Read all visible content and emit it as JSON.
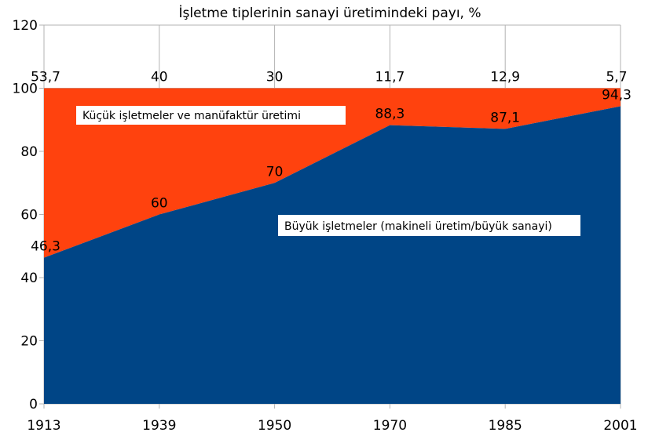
{
  "chart_data": {
    "type": "area",
    "stacked": true,
    "title": "İşletme tiplerinin sanayi üretimindeki payı, %",
    "categories": [
      "1913",
      "1939",
      "1950",
      "1970",
      "1985",
      "2001"
    ],
    "ylim": [
      0,
      120
    ],
    "yticks": [
      "0",
      "20",
      "40",
      "60",
      "80",
      "100",
      "120"
    ],
    "grid": true,
    "series": [
      {
        "name": "Büyük işletmeler (makineli üretim/büyük sanayi)",
        "values": [
          46.3,
          60,
          70,
          88.3,
          87.1,
          94.3
        ],
        "labels": [
          "46,3",
          "60",
          "70",
          "88,3",
          "87,1",
          "94,3"
        ],
        "color": "#004586"
      },
      {
        "name": "Küçük işletmeler ve manüfaktür üretimi",
        "values": [
          53.7,
          40,
          30,
          11.7,
          12.9,
          5.7
        ],
        "labels": [
          "53,7",
          "40",
          "30",
          "11,7",
          "12,9",
          "5,7"
        ],
        "color": "#ff420e"
      }
    ]
  }
}
